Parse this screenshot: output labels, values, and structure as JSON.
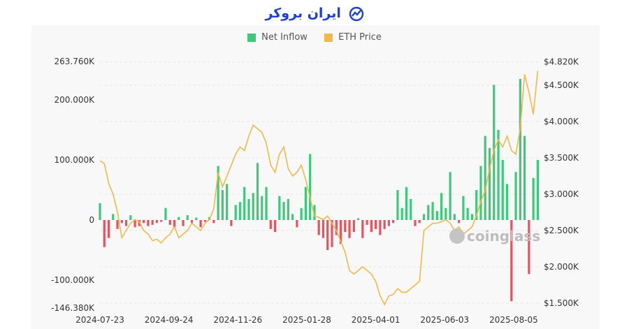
{
  "brand": {
    "logo_text": "ایران بروکر",
    "logo_icon": "trend-chart-icon",
    "color": "#1e3fd1"
  },
  "watermark": "coinglass",
  "colors": {
    "inflow_positive": "#3ec97a",
    "inflow_negative": "#e8525f",
    "price": "#f0b94a"
  },
  "chart_data": {
    "type": "bar+line",
    "legend": {
      "placement": "top-center",
      "items": [
        "Net Inflow",
        "ETH Price"
      ]
    },
    "grid": true,
    "x_ticks": [
      "2024-07-23",
      "2024-09-24",
      "2024-11-26",
      "2025-01-28",
      "2025-04-01",
      "2025-06-03",
      "2025-08-05"
    ],
    "y_left": {
      "ticks": [
        "263.760K",
        "200.000K",
        "100.000K",
        "0",
        "-100.000K",
        "-146.380K"
      ],
      "tick_values": [
        263.76,
        200,
        100,
        0,
        -100,
        -146.38
      ],
      "range": [
        -146.38,
        263.76
      ],
      "unit": "K"
    },
    "y_right": {
      "ticks": [
        "$4.820K",
        "$4.500K",
        "$4.000K",
        "$3.500K",
        "$3.000K",
        "$2.500K",
        "$2.000K",
        "$1.500K"
      ],
      "tick_values": [
        4820,
        4500,
        4000,
        3500,
        3000,
        2500,
        2000,
        1500
      ],
      "range": [
        1500,
        4820
      ],
      "unit": "USD"
    },
    "x": [
      "2024-07-23",
      "2024-07-27",
      "2024-07-31",
      "2024-08-04",
      "2024-08-08",
      "2024-08-12",
      "2024-08-16",
      "2024-08-20",
      "2024-08-24",
      "2024-08-28",
      "2024-09-01",
      "2024-09-05",
      "2024-09-09",
      "2024-09-13",
      "2024-09-17",
      "2024-09-21",
      "2024-09-25",
      "2024-09-29",
      "2024-10-03",
      "2024-10-07",
      "2024-10-11",
      "2024-10-15",
      "2024-10-19",
      "2024-10-23",
      "2024-10-27",
      "2024-10-31",
      "2024-11-04",
      "2024-11-08",
      "2024-11-12",
      "2024-11-16",
      "2024-11-20",
      "2024-11-24",
      "2024-11-28",
      "2024-12-02",
      "2024-12-06",
      "2024-12-10",
      "2024-12-14",
      "2024-12-18",
      "2024-12-22",
      "2024-12-26",
      "2024-12-30",
      "2025-01-03",
      "2025-01-07",
      "2025-01-11",
      "2025-01-15",
      "2025-01-19",
      "2025-01-23",
      "2025-01-27",
      "2025-01-31",
      "2025-02-04",
      "2025-02-08",
      "2025-02-12",
      "2025-02-16",
      "2025-02-20",
      "2025-02-24",
      "2025-02-28",
      "2025-03-04",
      "2025-03-08",
      "2025-03-12",
      "2025-03-16",
      "2025-03-20",
      "2025-03-24",
      "2025-03-28",
      "2025-04-01",
      "2025-04-05",
      "2025-04-09",
      "2025-04-13",
      "2025-04-17",
      "2025-04-21",
      "2025-04-25",
      "2025-04-29",
      "2025-05-03",
      "2025-05-07",
      "2025-05-11",
      "2025-05-15",
      "2025-05-19",
      "2025-05-23",
      "2025-05-27",
      "2025-05-31",
      "2025-06-04",
      "2025-06-08",
      "2025-06-12",
      "2025-06-16",
      "2025-06-20",
      "2025-06-24",
      "2025-06-28",
      "2025-07-02",
      "2025-07-06",
      "2025-07-10",
      "2025-07-14",
      "2025-07-18",
      "2025-07-22",
      "2025-07-26",
      "2025-07-30",
      "2025-08-03",
      "2025-08-07",
      "2025-08-11",
      "2025-08-15",
      "2025-08-19",
      "2025-08-23",
      "2025-08-27"
    ],
    "series": [
      {
        "name": "Net Inflow",
        "type": "bar",
        "axis": "left",
        "values": [
          28,
          -45,
          -30,
          10,
          -15,
          -5,
          -10,
          8,
          -12,
          -10,
          -5,
          -10,
          -8,
          -5,
          -3,
          20,
          -8,
          -12,
          5,
          -10,
          8,
          -5,
          4,
          -12,
          -3,
          5,
          -5,
          90,
          50,
          60,
          -10,
          25,
          30,
          55,
          35,
          45,
          95,
          40,
          55,
          -15,
          -20,
          40,
          30,
          35,
          10,
          -12,
          20,
          55,
          110,
          25,
          -25,
          -30,
          -50,
          -45,
          -25,
          -40,
          -20,
          -30,
          -20,
          3,
          -30,
          -8,
          -20,
          -15,
          -25,
          -15,
          -10,
          -5,
          50,
          20,
          55,
          35,
          -10,
          -5,
          10,
          25,
          30,
          15,
          45,
          20,
          80,
          10,
          -5,
          40,
          20,
          10,
          50,
          90,
          140,
          120,
          225,
          150,
          100,
          60,
          -135,
          80,
          235,
          140,
          -90,
          70,
          100
        ]
      },
      {
        "name": "ETH Price",
        "type": "line",
        "axis": "right",
        "values": [
          3460,
          3420,
          3150,
          3000,
          2750,
          2400,
          2500,
          2600,
          2650,
          2620,
          2500,
          2450,
          2360,
          2380,
          2330,
          2400,
          2450,
          2550,
          2400,
          2450,
          2500,
          2600,
          2550,
          2500,
          2600,
          2650,
          2800,
          3300,
          3100,
          3250,
          3400,
          3550,
          3650,
          3600,
          3800,
          3950,
          3900,
          3850,
          3700,
          3400,
          3300,
          3550,
          3650,
          3350,
          3250,
          3300,
          3400,
          3200,
          2950,
          2700,
          2680,
          2650,
          2700,
          2600,
          2500,
          2350,
          2200,
          1950,
          1900,
          1950,
          2000,
          1950,
          1900,
          1800,
          1600,
          1480,
          1600,
          1620,
          1700,
          1650,
          1650,
          1700,
          1750,
          1800,
          2500,
          2550,
          2600,
          2600,
          2620,
          2650,
          2600,
          2500,
          2550,
          2450,
          2500,
          2550,
          2700,
          2900,
          3050,
          3350,
          3600,
          3750,
          3650,
          3800,
          3600,
          3550,
          3900,
          4650,
          4400,
          4100,
          4700
        ]
      }
    ]
  }
}
